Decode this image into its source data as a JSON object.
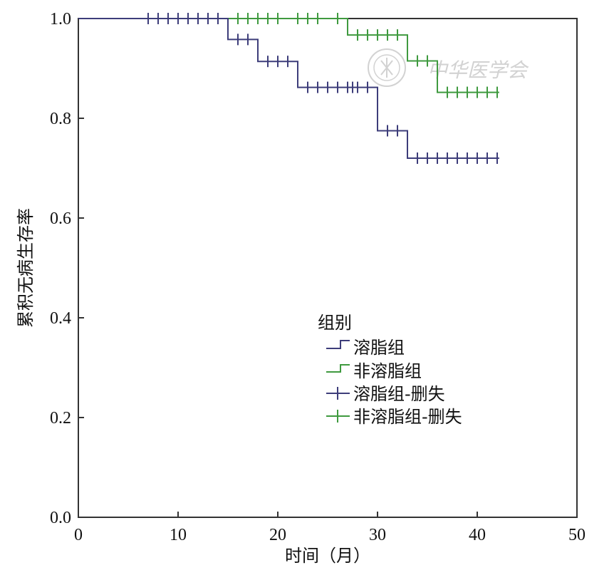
{
  "chart_data": {
    "type": "line",
    "step": true,
    "title": "",
    "xlabel": "时间（月）",
    "ylabel": "累积无病生存率",
    "xlim": [
      0,
      50
    ],
    "ylim": [
      0,
      1.0
    ],
    "xticks": [
      "0",
      "10",
      "20",
      "30",
      "40",
      "50"
    ],
    "yticks": [
      "0.0",
      "0.2",
      "0.4",
      "0.6",
      "0.8",
      "1.0"
    ],
    "grid": false,
    "legend": {
      "title": "组别",
      "position": "center-right",
      "entries": [
        "溶脂组",
        "非溶脂组",
        "溶脂组-删失",
        "非溶脂组-删失"
      ]
    },
    "series": [
      {
        "name": "溶脂组",
        "color": "#3d3d7a",
        "steps": [
          [
            0,
            1.0
          ],
          [
            15,
            0.958
          ],
          [
            18,
            0.914
          ],
          [
            22,
            0.862
          ],
          [
            30,
            0.775
          ],
          [
            33,
            0.72
          ],
          [
            42.2,
            0.72
          ]
        ],
        "censored": [
          7,
          8,
          9,
          10,
          11,
          12,
          13,
          14,
          16,
          17,
          19,
          20,
          21,
          23,
          24,
          25,
          26,
          27,
          27.5,
          28,
          29,
          31,
          32,
          34,
          35,
          36,
          37,
          38,
          39,
          40,
          41,
          42
        ]
      },
      {
        "name": "非溶脂组",
        "color": "#3f9a3f",
        "steps": [
          [
            0,
            1.0
          ],
          [
            27,
            0.967
          ],
          [
            33,
            0.915
          ],
          [
            36,
            0.852
          ],
          [
            42.2,
            0.852
          ]
        ],
        "censored": [
          7,
          8,
          9,
          10,
          11,
          12,
          13,
          14,
          16,
          17,
          18,
          19,
          20,
          22,
          23,
          24,
          26,
          28,
          29,
          30,
          31,
          32,
          34,
          35,
          37,
          38,
          39,
          40,
          41,
          42
        ]
      }
    ]
  },
  "watermark": {
    "text": "中华医学会",
    "color": "#d2d2d2",
    "icon": "seal-logo"
  }
}
